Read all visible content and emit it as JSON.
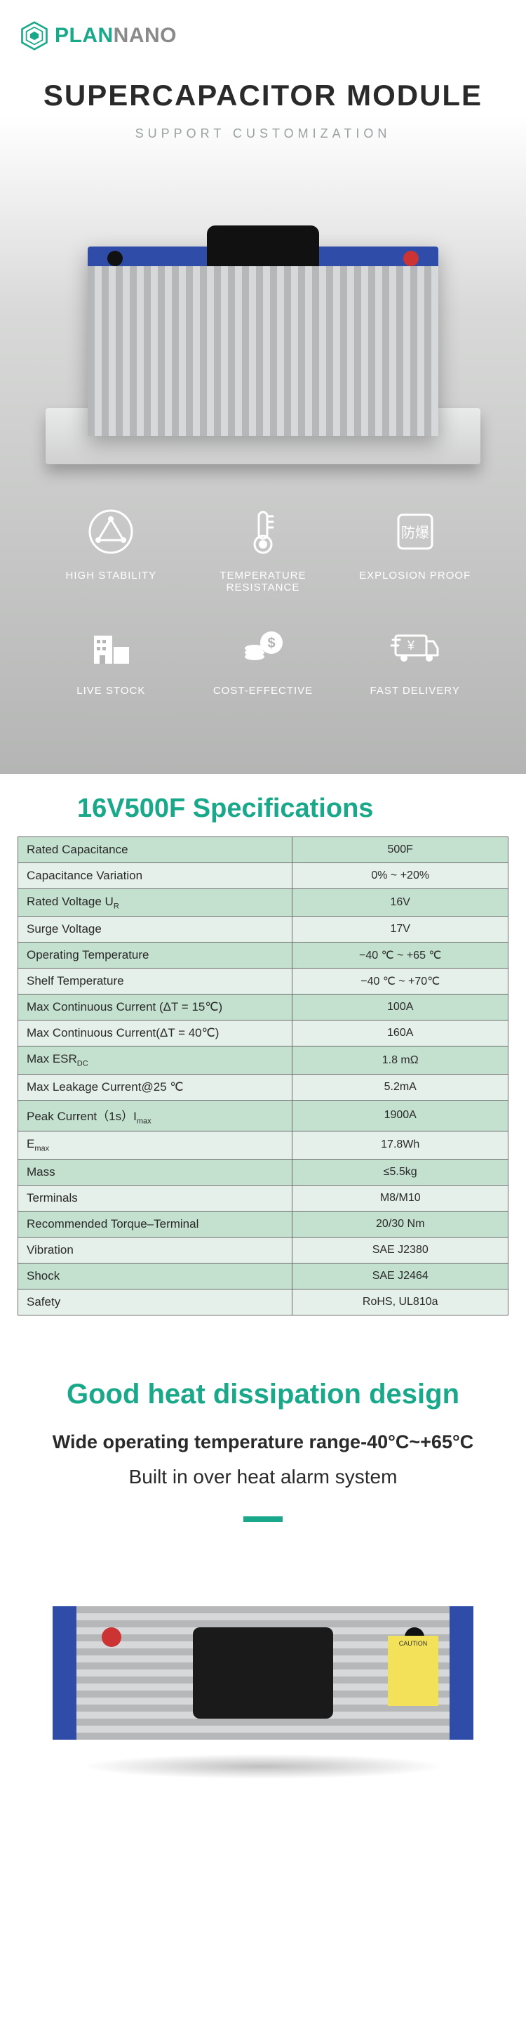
{
  "brand": {
    "pre": "PLAN",
    "post": "NANO"
  },
  "hero": {
    "title": "SUPERCAPACITOR MODULE",
    "subtitle": "SUPPORT CUSTOMIZATION"
  },
  "features": [
    {
      "label": "HIGH STABILITY",
      "icon": "triangle"
    },
    {
      "label": "TEMPERATURE RESISTANCE",
      "icon": "thermo"
    },
    {
      "label": "EXPLOSION PROOF",
      "icon": "shield"
    },
    {
      "label": "LIVE STOCK",
      "icon": "building"
    },
    {
      "label": "COST-EFFECTIVE",
      "icon": "coins"
    },
    {
      "label": "FAST DELIVERY",
      "icon": "truck"
    }
  ],
  "spec": {
    "title": "16V500F Specifications",
    "rows": [
      {
        "k": "Rated Capacitance",
        "v": "500F"
      },
      {
        "k": "Capacitance Variation",
        "v": "0% ~ +20%"
      },
      {
        "k": "Rated Voltage U",
        "ksub": "R",
        "v": "16V"
      },
      {
        "k": "Surge Voltage",
        "v": "17V"
      },
      {
        "k": "Operating Temperature",
        "v": "−40 ℃ ~ +65 ℃"
      },
      {
        "k": "Shelf Temperature",
        "v": "−40 ℃ ~ +70℃"
      },
      {
        "k": "Max Continuous Current (ΔT = 15℃)",
        "v": "100A"
      },
      {
        "k": "Max Continuous Current(ΔT = 40℃)",
        "v": "160A"
      },
      {
        "k": "Max ESR",
        "ksub": "DC",
        "v": "1.8 mΩ"
      },
      {
        "k": "Max Leakage Current@25 ℃",
        "v": "5.2mA"
      },
      {
        "k": "Peak Current（1s）I",
        "ksub": "max",
        "v": "1900A"
      },
      {
        "k": "E",
        "ksub": "max",
        "v": "17.8Wh"
      },
      {
        "k": "Mass",
        "v": "≤5.5kg"
      },
      {
        "k": "Terminals",
        "v": "M8/M10"
      },
      {
        "k": "Recommended Torque–Terminal",
        "v": "20/30 Nm"
      },
      {
        "k": "Vibration",
        "v": "SAE J2380"
      },
      {
        "k": "Shock",
        "v": "SAE J2464"
      },
      {
        "k": "Safety",
        "v": "RoHS, UL810a"
      }
    ]
  },
  "heat": {
    "title": "Good heat dissipation design",
    "line1": "Wide operating temperature range-40°C~+65°C",
    "line2": "Built in over heat alarm system"
  },
  "colors": {
    "accent": "#19a88a",
    "blue": "#2f4da8",
    "row_odd": "#c4e0cf",
    "row_even": "#e6f0ea"
  }
}
